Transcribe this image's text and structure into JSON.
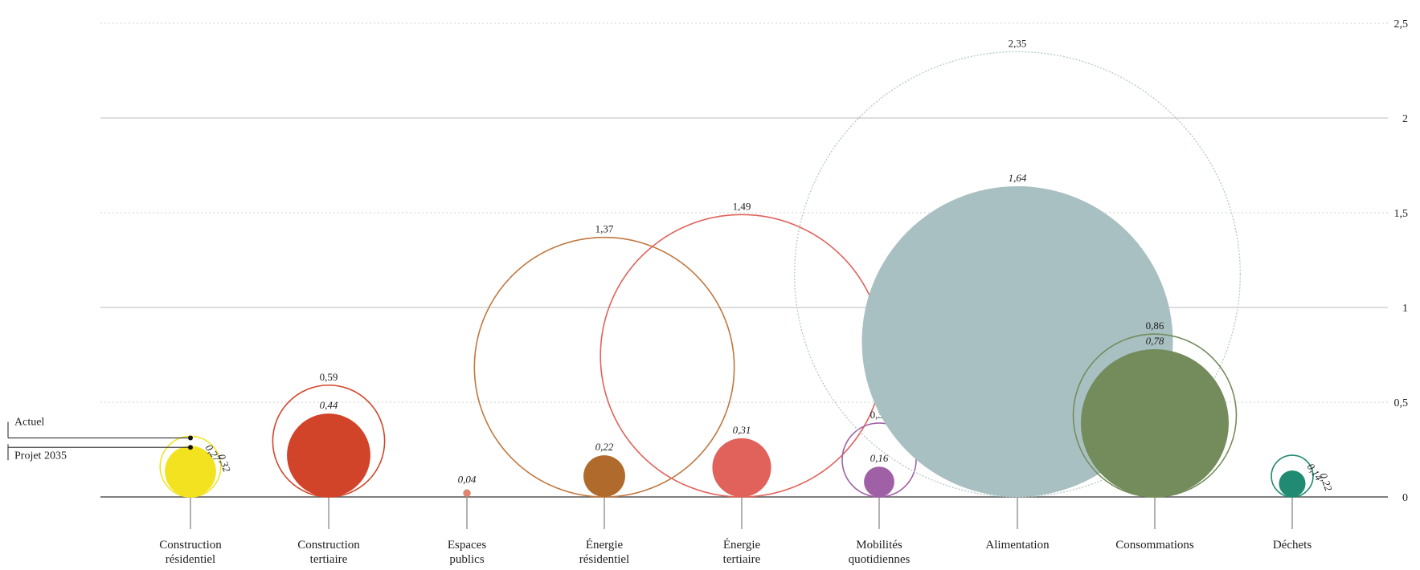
{
  "chart_data": {
    "type": "bubble",
    "title": "",
    "xlabel": "",
    "ylabel": "",
    "ylim": [
      0,
      2.5
    ],
    "yticks": [
      {
        "value": 0,
        "label": "0"
      },
      {
        "value": 0.5,
        "label": "0,5"
      },
      {
        "value": 1,
        "label": "1"
      },
      {
        "value": 1.5,
        "label": "1,5"
      },
      {
        "value": 2,
        "label": "2"
      },
      {
        "value": 2.5,
        "label": "2,5"
      }
    ],
    "grid": true,
    "legend_position": "left",
    "legend": [
      {
        "label": "Actuel",
        "style": "outline"
      },
      {
        "label": "Projet 2035",
        "style": "filled"
      }
    ],
    "categories": [
      {
        "label_lines": [
          "Construction",
          "résidentiel"
        ],
        "actuel": 0.32,
        "actuel_label": "0,32",
        "projet": 0.27,
        "projet_label": "0,27",
        "color": "#f2e21f"
      },
      {
        "label_lines": [
          "Construction",
          "tertiaire"
        ],
        "actuel": 0.59,
        "actuel_label": "0,59",
        "projet": 0.44,
        "projet_label": "0,44",
        "color": "#d2442a"
      },
      {
        "label_lines": [
          "Espaces",
          "publics"
        ],
        "actuel": null,
        "actuel_label": "",
        "projet": 0.04,
        "projet_label": "0,04",
        "color": "#e0836f"
      },
      {
        "label_lines": [
          "Énergie",
          "résidentiel"
        ],
        "actuel": 1.37,
        "actuel_label": "1,37",
        "projet": 0.22,
        "projet_label": "0,22",
        "color": "#b06a2c",
        "outline_color": "#c07840"
      },
      {
        "label_lines": [
          "Énergie",
          "tertiaire"
        ],
        "actuel": 1.49,
        "actuel_label": "1,49",
        "projet": 0.31,
        "projet_label": "0,31",
        "color": "#e0625a"
      },
      {
        "label_lines": [
          "Mobilités",
          "quotidiennes"
        ],
        "actuel": 0.39,
        "actuel_label": "0,39",
        "projet": 0.16,
        "projet_label": "0,16",
        "color": "#a060a6"
      },
      {
        "label_lines": [
          "Alimentation"
        ],
        "actuel": 2.35,
        "actuel_label": "2,35",
        "projet": 1.64,
        "projet_label": "1,64",
        "color": "#a9c0c2",
        "outline_color": "#b5c7c8"
      },
      {
        "label_lines": [
          "Consommations"
        ],
        "actuel": 0.86,
        "actuel_label": "0,86",
        "projet": 0.78,
        "projet_label": "0,78",
        "color": "#748c5c"
      },
      {
        "label_lines": [
          "Déchets"
        ],
        "actuel": 0.22,
        "actuel_label": "0,22",
        "projet": 0.14,
        "projet_label": "0,14",
        "color": "#208a72"
      }
    ]
  }
}
